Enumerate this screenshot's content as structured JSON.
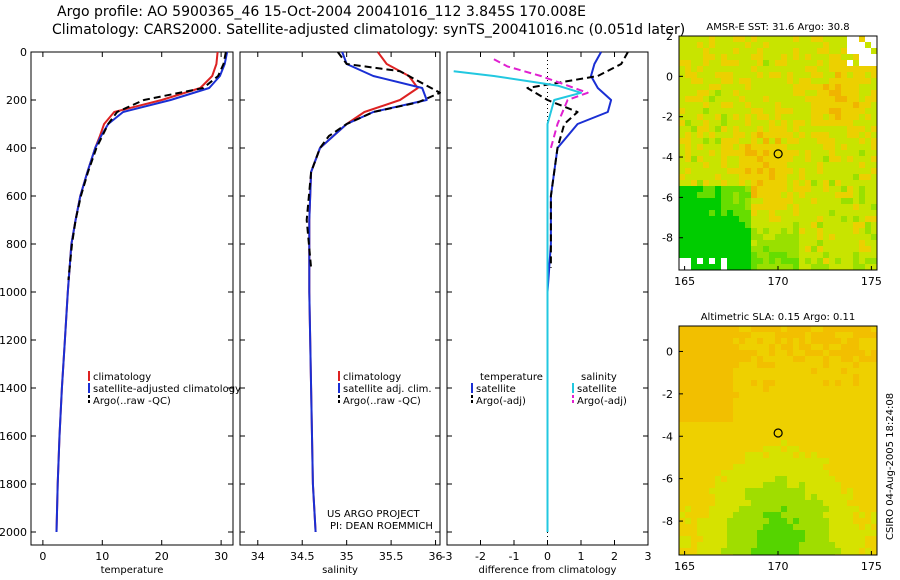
{
  "header": {
    "line1": "Argo profile: AO 5900365_46 15-Oct-2004 20041016_112 3.845S 170.008E",
    "line2": "Climatology: CARS2000. Satellite-adjusted climatology: synTS_20041016.nc (0.051d later)"
  },
  "credit": "CSIRO 04-Aug-2005 18:24:08",
  "project": {
    "line1": "US ARGO PROJECT",
    "line2": "PI: DEAN ROEMMICH"
  },
  "colors": {
    "climatology": "#dd2222",
    "satellite": "#1a2fd4",
    "argo": "#000000",
    "sat_salinity": "#22c8e0",
    "argo_adj_salinity": "#e020d0"
  },
  "chart_data": [
    {
      "id": "temperature",
      "type": "line",
      "xlabel": "temperature",
      "ylabel": "",
      "xlim": [
        -2,
        32
      ],
      "ylim": [
        2050,
        0
      ],
      "xticks": [
        0,
        10,
        20,
        30
      ],
      "yticks": [
        0,
        200,
        400,
        600,
        800,
        1000,
        1200,
        1400,
        1600,
        1800,
        2000
      ],
      "legend": [
        "climatology",
        "satellite-adjusted climatology",
        "Argo(..raw -QC)"
      ],
      "series": [
        {
          "name": "climatology",
          "style": "solid",
          "color": "#dd2222",
          "x": [
            29.4,
            29.2,
            28.5,
            26.5,
            20.0,
            12.0,
            10.3,
            9.6,
            8.8,
            7.5,
            6.3,
            5.5,
            4.8,
            4.2,
            3.7,
            3.2,
            2.8,
            2.5,
            2.3
          ],
          "y": [
            0,
            50,
            100,
            150,
            200,
            250,
            300,
            350,
            400,
            500,
            600,
            700,
            800,
            1000,
            1200,
            1400,
            1600,
            1800,
            2000
          ]
        },
        {
          "name": "satellite-adjusted climatology",
          "style": "solid",
          "color": "#1a2fd4",
          "x": [
            31.0,
            30.6,
            29.8,
            28.0,
            21.5,
            13.5,
            11.0,
            9.8,
            8.8,
            7.5,
            6.3,
            5.5,
            4.8,
            4.2,
            3.7,
            3.2,
            2.8,
            2.5,
            2.3
          ],
          "y": [
            0,
            50,
            100,
            150,
            200,
            250,
            300,
            350,
            400,
            500,
            600,
            700,
            800,
            1000,
            1200,
            1400,
            1600,
            1800,
            2000
          ]
        },
        {
          "name": "Argo(..raw -QC)",
          "style": "dashed",
          "color": "#000000",
          "x": [
            30.8,
            30.4,
            29.5,
            27.0,
            17.0,
            12.5,
            11.0,
            10.0,
            9.0,
            7.6,
            6.4,
            5.5,
            4.9,
            4.3
          ],
          "y": [
            0,
            50,
            100,
            150,
            200,
            250,
            300,
            350,
            400,
            500,
            600,
            700,
            800,
            950
          ]
        }
      ]
    },
    {
      "id": "salinity",
      "type": "line",
      "xlabel": "salinity",
      "ylabel": "",
      "xlim": [
        33.8,
        36.05
      ],
      "ylim": [
        2050,
        0
      ],
      "xticks": [
        34,
        34.5,
        35,
        35.5,
        36
      ],
      "legend": [
        "climatology",
        "satellite adj. clim.",
        "Argo(..raw -QC)"
      ],
      "series": [
        {
          "name": "climatology",
          "style": "solid",
          "color": "#dd2222",
          "x": [
            35.35,
            35.45,
            35.7,
            35.8,
            35.6,
            35.2,
            35.0,
            34.85,
            34.7,
            34.6,
            34.58,
            34.58,
            34.6,
            34.62,
            34.65
          ],
          "y": [
            0,
            50,
            100,
            150,
            200,
            250,
            300,
            350,
            400,
            500,
            700,
            1000,
            1400,
            1800,
            2000
          ]
        },
        {
          "name": "satellite adj. clim.",
          "style": "solid",
          "color": "#1a2fd4",
          "x": [
            34.95,
            35.0,
            35.3,
            35.85,
            35.9,
            35.3,
            35.0,
            34.85,
            34.7,
            34.6,
            34.58,
            34.58,
            34.6,
            34.62,
            34.65
          ],
          "y": [
            0,
            50,
            100,
            150,
            200,
            250,
            300,
            350,
            400,
            500,
            700,
            1000,
            1400,
            1800,
            2000
          ]
        },
        {
          "name": "Argo(..raw -QC)",
          "style": "dashed",
          "color": "#000000",
          "x": [
            34.9,
            35.0,
            35.6,
            36.05,
            35.8,
            35.3,
            35.0,
            34.8,
            34.7,
            34.6,
            34.55,
            34.6
          ],
          "y": [
            0,
            50,
            80,
            170,
            210,
            250,
            300,
            350,
            400,
            500,
            700,
            900
          ]
        }
      ]
    },
    {
      "id": "difference",
      "type": "line",
      "xlabel": "difference from climatology",
      "ylabel": "",
      "xlim": [
        -3,
        3
      ],
      "ylim": [
        2050,
        0
      ],
      "xticks": [
        -3,
        -2,
        -1,
        0,
        1,
        2,
        3
      ],
      "legend_left": [
        "temperature",
        "satellite",
        "Argo(-adj)"
      ],
      "legend_right": [
        "salinity",
        "satellite",
        "Argo(-adj)"
      ],
      "series": [
        {
          "name": "temperature satellite",
          "style": "solid",
          "color": "#1a2fd4",
          "x": [
            1.6,
            1.4,
            1.3,
            1.5,
            1.9,
            1.8,
            0.9,
            0.3,
            0.1,
            0.1,
            0.0,
            0.0,
            0.0
          ],
          "y": [
            0,
            50,
            100,
            150,
            200,
            250,
            300,
            400,
            600,
            800,
            1000,
            1500,
            2000
          ]
        },
        {
          "name": "temperature Argo(-adj)",
          "style": "dashed",
          "color": "#000000",
          "x": [
            2.4,
            2.2,
            1.5,
            -0.6,
            0.0,
            0.9,
            0.5,
            0.3,
            0.1,
            0.1
          ],
          "y": [
            0,
            50,
            100,
            150,
            200,
            250,
            300,
            400,
            600,
            900
          ]
        },
        {
          "name": "salinity satellite",
          "style": "solid",
          "color": "#22c8e0",
          "x": [
            -2.8,
            -1.6,
            0.3,
            1.0,
            0.2,
            0.0,
            0.0,
            0.0
          ],
          "y": [
            80,
            100,
            140,
            170,
            200,
            300,
            800,
            2000
          ]
        },
        {
          "name": "salinity Argo(-adj)",
          "style": "dashed",
          "color": "#e020d0",
          "x": [
            -1.6,
            -1.2,
            -0.2,
            1.2,
            0.6,
            0.3,
            0.1
          ],
          "y": [
            30,
            60,
            100,
            170,
            200,
            300,
            400
          ]
        }
      ]
    },
    {
      "id": "sst-map",
      "type": "heatmap",
      "title": "AMSR-E SST: 31.6 Argo: 30.8",
      "xlim": [
        164.7,
        175.3
      ],
      "ylim": [
        -9.6,
        2.0
      ],
      "xticks": [
        165,
        170,
        175
      ],
      "yticks": [
        2,
        0,
        -2,
        -4,
        -6,
        -8
      ],
      "argo_position": {
        "lon": 170.008,
        "lat": -3.845
      },
      "palette": [
        "#00cc00",
        "#66dd00",
        "#99e000",
        "#c8e400",
        "#ecd000",
        "#f0b400",
        "#e0902a"
      ]
    },
    {
      "id": "sla-map",
      "type": "heatmap",
      "title": "Altimetric SLA: 0.15 Argo: 0.11",
      "xlim": [
        164.7,
        175.3
      ],
      "ylim": [
        -9.6,
        1.2
      ],
      "xticks": [
        165,
        170,
        175
      ],
      "yticks": [
        0,
        -2,
        -4,
        -6,
        -8
      ],
      "argo_position": {
        "lon": 170.008,
        "lat": -3.845
      },
      "palette": [
        "#00bb00",
        "#55d400",
        "#a0dd00",
        "#d6e200",
        "#eed000",
        "#f2bf00"
      ]
    }
  ]
}
